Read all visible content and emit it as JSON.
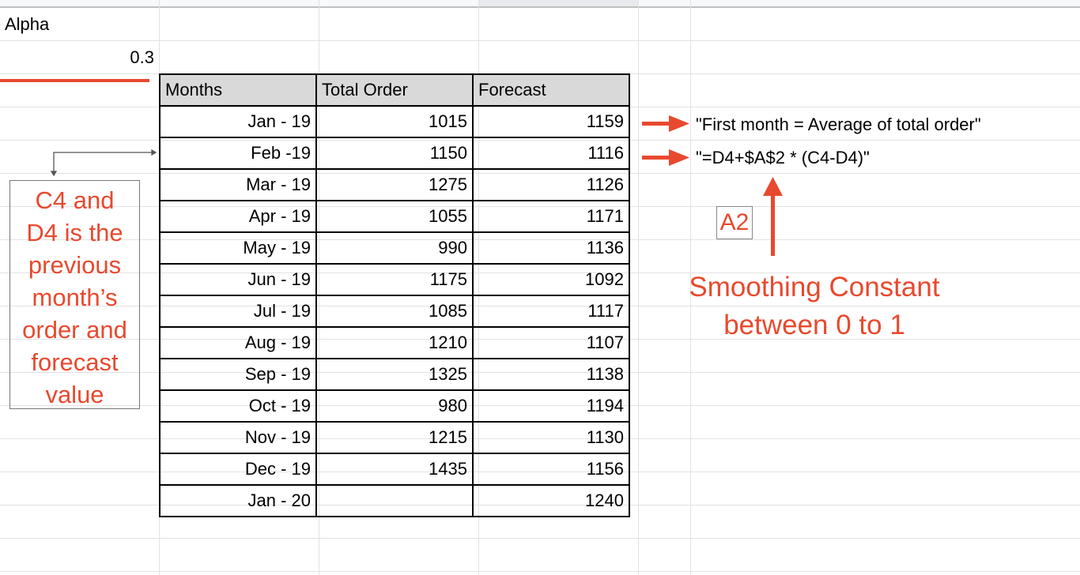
{
  "sheet": {
    "alpha_label": "Alpha",
    "alpha_value": "0.3",
    "headers": [
      "Months",
      "Total Order",
      "Forecast"
    ],
    "rows": [
      {
        "month": "Jan - 19",
        "order": "1015",
        "forecast": "1159"
      },
      {
        "month": "Feb -19",
        "order": "1150",
        "forecast": "1116"
      },
      {
        "month": "Mar - 19",
        "order": "1275",
        "forecast": "1126"
      },
      {
        "month": "Apr - 19",
        "order": "1055",
        "forecast": "1171"
      },
      {
        "month": "May - 19",
        "order": "990",
        "forecast": "1136"
      },
      {
        "month": "Jun - 19",
        "order": "1175",
        "forecast": "1092"
      },
      {
        "month": "Jul - 19",
        "order": "1085",
        "forecast": "1117"
      },
      {
        "month": "Aug - 19",
        "order": "1210",
        "forecast": "1107"
      },
      {
        "month": "Sep - 19",
        "order": "1325",
        "forecast": "1138"
      },
      {
        "month": "Oct - 19",
        "order": "980",
        "forecast": "1194"
      },
      {
        "month": "Nov - 19",
        "order": "1215",
        "forecast": "1130"
      },
      {
        "month": "Dec - 19",
        "order": "1435",
        "forecast": "1156"
      },
      {
        "month": "Jan - 20",
        "order": "",
        "forecast": "1240"
      }
    ]
  },
  "annotations": {
    "first_month_note": "\"First month = Average of total order\"",
    "formula_note": "\"=D4+$A$2 * (C4-D4)\"",
    "a2_label": "A2",
    "smoothing_line1": "Smoothing Constant",
    "smoothing_line2": "between 0 to 1",
    "previous_note": [
      "C4 and",
      "D4 is the",
      "previous",
      "month’s",
      "order and",
      "forecast",
      "value"
    ]
  },
  "colors": {
    "annotation": "#e8492e",
    "header_fill": "#d9d9d9"
  }
}
